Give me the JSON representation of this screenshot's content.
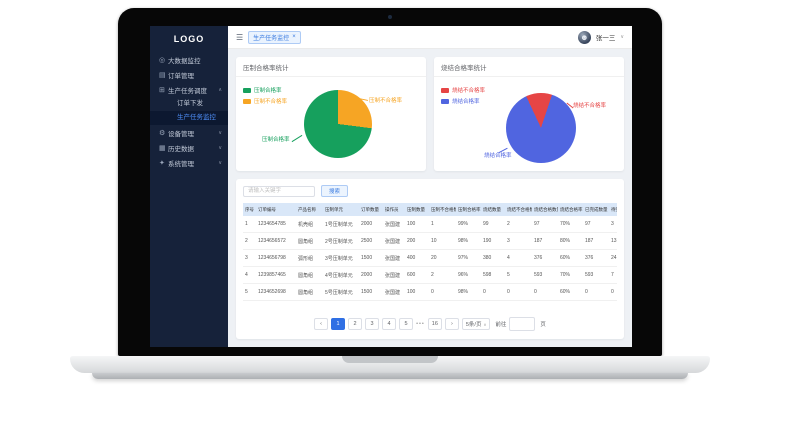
{
  "sidebar": {
    "logo": "LOGO",
    "items": [
      {
        "id": "bigdata",
        "icon": "monitor-icon",
        "label": "大数据监控",
        "type": "item"
      },
      {
        "id": "orders",
        "icon": "order-icon",
        "label": "订单管理",
        "type": "item"
      },
      {
        "id": "schedule",
        "icon": "task-icon",
        "label": "生产任务调度",
        "type": "group",
        "expanded": true,
        "children": [
          {
            "id": "order-dispatch",
            "label": "订单下发",
            "active": false
          },
          {
            "id": "task-monitor",
            "label": "生产任务监控",
            "active": true
          }
        ]
      },
      {
        "id": "device",
        "icon": "gear-icon",
        "label": "设备管理",
        "type": "group",
        "expanded": false
      },
      {
        "id": "history",
        "icon": "chart-icon",
        "label": "历史数据",
        "type": "group",
        "expanded": false
      },
      {
        "id": "system",
        "icon": "settings-icon",
        "label": "系统管理",
        "type": "group",
        "expanded": false
      }
    ]
  },
  "topbar": {
    "fold_icon": "menu-fold-icon",
    "tab": {
      "label": "生产任务监控",
      "close": "×"
    },
    "user": {
      "name": "张一三",
      "chevron": "∨"
    }
  },
  "chart_data": [
    {
      "type": "pie",
      "title": "压制合格率统计",
      "labels": [
        "压制合格率",
        "压制不合格率"
      ],
      "values": [
        73,
        27
      ],
      "colors": [
        "#16a05d",
        "#f6a524"
      ],
      "legend_position": "top-left",
      "unit": "%"
    },
    {
      "type": "pie",
      "title": "烧结合格率统计",
      "labels": [
        "烧结不合格率",
        "烧结合格率"
      ],
      "values": [
        12,
        88
      ],
      "colors": [
        "#e64545",
        "#5065e0"
      ],
      "legend_position": "top-left",
      "unit": "%"
    }
  ],
  "table": {
    "search_placeholder": "请输入关键字",
    "search_button": "搜索",
    "columns": [
      "序号",
      "订单编号",
      "产品名称",
      "压制单元",
      "订单数量",
      "操作员",
      "压制数量",
      "压制不合格数量",
      "压制合格率",
      "烧结数量",
      "烧结不合格数量",
      "烧结合格数量",
      "烧结合格率",
      "已完成数量",
      "待完成数量"
    ],
    "rows": [
      [
        "1",
        "1234654785",
        "机壳组",
        "1号压制单元",
        "2000",
        "张国建",
        "100",
        "1",
        "99%",
        "99",
        "2",
        "97",
        "70%",
        "97",
        "3"
      ],
      [
        "2",
        "1234656572",
        "圆角组",
        "2号压制单元",
        "2500",
        "张国建",
        "200",
        "10",
        "98%",
        "190",
        "3",
        "187",
        "80%",
        "187",
        "13"
      ],
      [
        "3",
        "1234656798",
        "弧形组",
        "3号压制单元",
        "1500",
        "张国建",
        "400",
        "20",
        "97%",
        "380",
        "4",
        "376",
        "60%",
        "376",
        "24"
      ],
      [
        "4",
        "1239857465",
        "圆角组",
        "4号压制单元",
        "2000",
        "张国建",
        "600",
        "2",
        "96%",
        "598",
        "5",
        "593",
        "70%",
        "593",
        "7"
      ],
      [
        "5",
        "1234652698",
        "圆角组",
        "5号压制单元",
        "1500",
        "张国建",
        "100",
        "0",
        "98%",
        "0",
        "0",
        "0",
        "60%",
        "0",
        "0"
      ]
    ],
    "pagination": {
      "prev": "‹",
      "pages": [
        "1",
        "2",
        "3",
        "4",
        "5"
      ],
      "active": "1",
      "ellipsis": "•••",
      "last": "16",
      "next": "›",
      "page_size": "5条/页",
      "jump_prefix": "前往",
      "jump_suffix": "页",
      "jump_value": ""
    }
  }
}
